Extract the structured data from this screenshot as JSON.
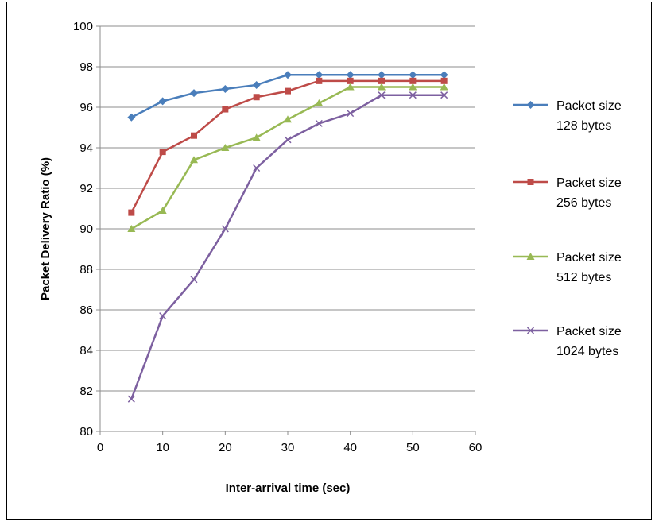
{
  "chart_data": {
    "type": "line",
    "xlabel": "Inter-arrival time (sec)",
    "ylabel": "Packet Delivery Ratio (%)",
    "xlim": [
      0,
      60
    ],
    "ylim": [
      80,
      100
    ],
    "x_ticks": [
      0,
      10,
      20,
      30,
      40,
      50,
      60
    ],
    "y_ticks": [
      80,
      82,
      84,
      86,
      88,
      90,
      92,
      94,
      96,
      98,
      100
    ],
    "grid": "horizontal",
    "legend_position": "right",
    "x": [
      5,
      10,
      15,
      20,
      25,
      30,
      35,
      40,
      45,
      50,
      55
    ],
    "series": [
      {
        "name_lines": [
          "Packet size",
          "128 bytes"
        ],
        "color": "#4a7ebb",
        "marker": "diamond",
        "values": [
          95.5,
          96.3,
          96.7,
          96.9,
          97.1,
          97.6,
          97.6,
          97.6,
          97.6,
          97.6,
          97.6
        ]
      },
      {
        "name_lines": [
          "Packet size",
          "256 bytes"
        ],
        "color": "#be4b48",
        "marker": "square",
        "values": [
          90.8,
          93.8,
          94.6,
          95.9,
          96.5,
          96.8,
          97.3,
          97.3,
          97.3,
          97.3,
          97.3
        ]
      },
      {
        "name_lines": [
          "Packet size",
          "512 bytes"
        ],
        "color": "#98b954",
        "marker": "triangle",
        "values": [
          90.0,
          90.9,
          93.4,
          94.0,
          94.5,
          95.4,
          96.2,
          97.0,
          97.0,
          97.0,
          97.0
        ]
      },
      {
        "name_lines": [
          "Packet size",
          "1024 bytes"
        ],
        "color": "#7d60a0",
        "marker": "x",
        "values": [
          81.6,
          85.7,
          87.5,
          90.0,
          93.0,
          94.4,
          95.2,
          95.7,
          96.6,
          96.6,
          96.6
        ]
      }
    ]
  }
}
